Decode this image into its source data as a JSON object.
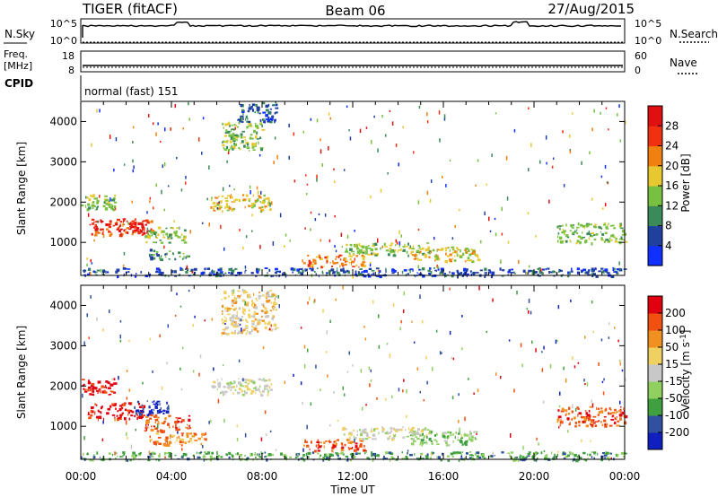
{
  "header": {
    "station": "TIGER (fitACF)",
    "beam": "Beam 06",
    "date": "27/Aug/2015"
  },
  "nsky_panel": {
    "label": "N.Sky",
    "right_label": "N.Search",
    "left_ticks": [
      "10^5",
      "10^0"
    ],
    "right_ticks": [
      "10^5",
      "10^0"
    ]
  },
  "freq_panel": {
    "label_line1": "Freq.",
    "label_line2": "[MHz]",
    "right_label": "Nave",
    "left_ticks": [
      "18",
      "8"
    ],
    "right_ticks": [
      "60",
      "0"
    ]
  },
  "cpid": {
    "label": "CPID",
    "value": "normal (fast) 151"
  },
  "x_axis": {
    "label": "Time UT",
    "ticks": [
      "00:00",
      "04:00",
      "08:00",
      "12:00",
      "16:00",
      "20:00",
      "00:00"
    ]
  },
  "chart_data": [
    {
      "type": "heatmap",
      "title": "",
      "xlabel": "Time UT",
      "ylabel": "Slant Range [km]",
      "xlim": [
        0,
        24
      ],
      "ylim": [
        180,
        4500
      ],
      "yticks": [
        1000,
        2000,
        3000,
        4000
      ],
      "colorbar": {
        "label": "Power [dB]",
        "ticks": [
          "4",
          "8",
          "12",
          "16",
          "20",
          "24",
          "28"
        ],
        "colors": [
          "#1030ff",
          "#2040a0",
          "#3a8a5a",
          "#78c040",
          "#e8c830",
          "#f08010",
          "#f03010",
          "#e01010"
        ]
      },
      "echo_regions": [
        {
          "t": [
            0.0,
            1.5
          ],
          "r": [
            1800,
            2200
          ],
          "c": 3
        },
        {
          "t": [
            0.3,
            3.2
          ],
          "r": [
            1200,
            1600
          ],
          "c": 6
        },
        {
          "t": [
            1.5,
            2.8
          ],
          "r": [
            1250,
            1550
          ],
          "c": 7
        },
        {
          "t": [
            2.8,
            4.6
          ],
          "r": [
            1000,
            1400
          ],
          "c": 3
        },
        {
          "t": [
            3.0,
            4.8
          ],
          "r": [
            600,
            850
          ],
          "c": 2
        },
        {
          "t": [
            5.7,
            8.4
          ],
          "r": [
            1800,
            2200
          ],
          "c": 4
        },
        {
          "t": [
            6.2,
            8.0
          ],
          "r": [
            3300,
            4000
          ],
          "c": 3
        },
        {
          "t": [
            6.9,
            8.6
          ],
          "r": [
            4000,
            4500
          ],
          "c": 1
        },
        {
          "t": [
            9.8,
            12.5
          ],
          "r": [
            400,
            700
          ],
          "c": 5
        },
        {
          "t": [
            11.5,
            15.5
          ],
          "r": [
            700,
            1000
          ],
          "c": 3
        },
        {
          "t": [
            14.5,
            17.5
          ],
          "r": [
            550,
            900
          ],
          "c": 4
        },
        {
          "t": [
            21.0,
            24.0
          ],
          "r": [
            1000,
            1500
          ],
          "c": 3
        },
        {
          "t": [
            0.0,
            24.0
          ],
          "r": [
            180,
            380
          ],
          "c": 1
        }
      ]
    },
    {
      "type": "heatmap",
      "title": "",
      "xlabel": "Time UT",
      "ylabel": "Slant Range [km]",
      "xlim": [
        0,
        24
      ],
      "ylim": [
        180,
        4500
      ],
      "yticks": [
        1000,
        2000,
        3000,
        4000
      ],
      "colorbar": {
        "label": "Velocity [m s^-1]",
        "ticks": [
          "200",
          "100",
          "50",
          "15",
          "-15",
          "-50",
          "-100",
          "-200"
        ],
        "colors": [
          "#1020c0",
          "#3050a0",
          "#40a040",
          "#90d060",
          "#c8c8c8",
          "#f0d060",
          "#f09020",
          "#f05010",
          "#e00010"
        ]
      },
      "echo_regions": [
        {
          "t": [
            0.0,
            1.5
          ],
          "r": [
            1800,
            2200
          ],
          "c": 8
        },
        {
          "t": [
            0.3,
            2.8
          ],
          "r": [
            1200,
            1600
          ],
          "c": 8
        },
        {
          "t": [
            2.3,
            3.8
          ],
          "r": [
            1300,
            1650
          ],
          "c": 0
        },
        {
          "t": [
            2.8,
            4.8
          ],
          "r": [
            900,
            1300
          ],
          "c": 7
        },
        {
          "t": [
            3.0,
            5.5
          ],
          "r": [
            550,
            850
          ],
          "c": 6
        },
        {
          "t": [
            5.7,
            8.4
          ],
          "r": [
            1800,
            2200
          ],
          "c": 4
        },
        {
          "t": [
            6.2,
            8.6
          ],
          "r": [
            3300,
            4400
          ],
          "c": 5
        },
        {
          "t": [
            9.8,
            12.5
          ],
          "r": [
            400,
            700
          ],
          "c": 7
        },
        {
          "t": [
            11.5,
            15.5
          ],
          "r": [
            700,
            1000
          ],
          "c": 4
        },
        {
          "t": [
            14.5,
            17.5
          ],
          "r": [
            550,
            900
          ],
          "c": 3
        },
        {
          "t": [
            21.0,
            24.0
          ],
          "r": [
            1000,
            1500
          ],
          "c": 7
        },
        {
          "t": [
            0.0,
            24.0
          ],
          "r": [
            180,
            380
          ],
          "c": 2
        }
      ]
    }
  ]
}
